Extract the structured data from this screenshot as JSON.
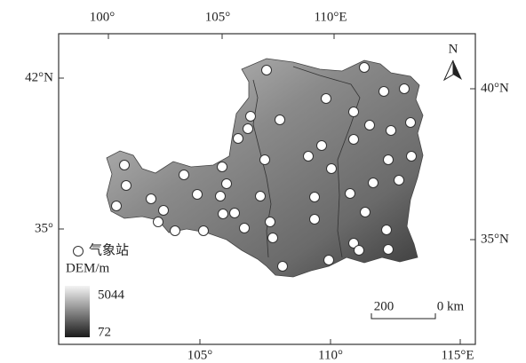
{
  "map": {
    "top_ticks": [
      "100°",
      "105°",
      "110°E"
    ],
    "bottom_ticks": [
      "105°",
      "110°",
      "115°E"
    ],
    "left_ticks": [
      "42°N",
      "35°"
    ],
    "right_ticks": [
      "40°N",
      "35°N"
    ],
    "north": "N",
    "legend": {
      "station": "气象站",
      "dem_title": "DEM/m",
      "dem_max": 5044,
      "dem_min": 72
    },
    "scale": {
      "left": "200",
      "right": "0 km"
    }
  }
}
